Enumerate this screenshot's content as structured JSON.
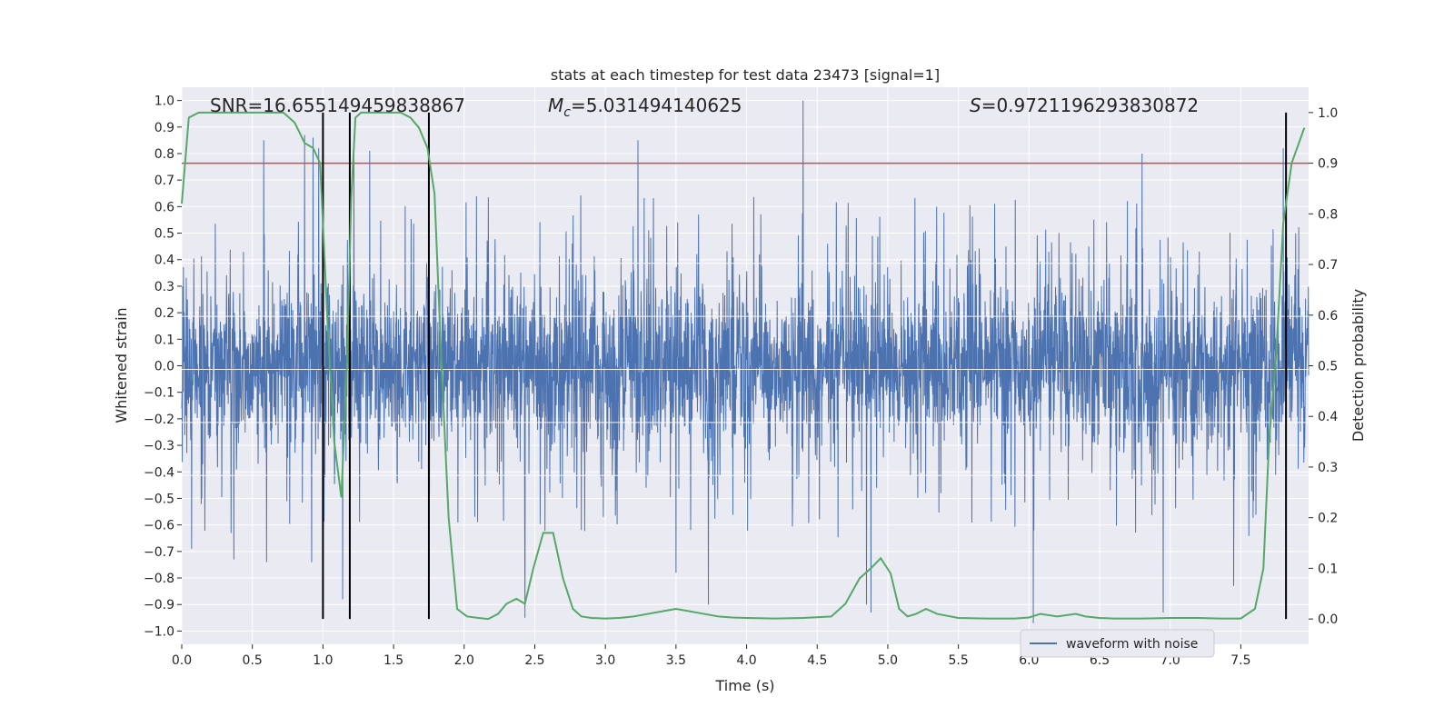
{
  "chart_data": {
    "type": "line",
    "title": "stats at each timestep for test data 23473 [signal=1]",
    "xlabel": "Time (s)",
    "ylabel": "Whitened strain",
    "y2label": "Detection probability",
    "xlim": [
      0.0,
      7.98
    ],
    "ylim": [
      -1.05,
      1.05
    ],
    "y2lim": [
      -0.05,
      1.05
    ],
    "x_ticks": [
      0.0,
      0.5,
      1.0,
      1.5,
      2.0,
      2.5,
      3.0,
      3.5,
      4.0,
      4.5,
      5.0,
      5.5,
      6.0,
      6.5,
      7.0,
      7.5
    ],
    "x_tick_labels": [
      "0.0",
      "0.5",
      "1.0",
      "1.5",
      "2.0",
      "2.5",
      "3.0",
      "3.5",
      "4.0",
      "4.5",
      "5.0",
      "5.5",
      "6.0",
      "6.5",
      "7.0",
      "7.5"
    ],
    "y_ticks": [
      1.0,
      0.9,
      0.8,
      0.7,
      0.6,
      0.5,
      0.4,
      0.3,
      0.2,
      0.1,
      0.0,
      -0.1,
      -0.2,
      -0.3,
      -0.4,
      -0.5,
      -0.6,
      -0.7,
      -0.8,
      -0.9,
      -1.0
    ],
    "y_tick_labels": [
      "1.0",
      "0.9",
      "0.8",
      "0.7",
      "0.6",
      "0.5",
      "0.4",
      "0.3",
      "0.2",
      "0.1",
      "0.0",
      "−0.1",
      "−0.2",
      "−0.3",
      "−0.4",
      "−0.5",
      "−0.6",
      "−0.7",
      "−0.8",
      "−0.9",
      "−1.0"
    ],
    "y2_ticks": [
      1.0,
      0.9,
      0.8,
      0.7,
      0.6,
      0.5,
      0.4,
      0.3,
      0.2,
      0.1,
      0.0
    ],
    "y2_tick_labels": [
      "1.0",
      "0.9",
      "0.8",
      "0.7",
      "0.6",
      "0.5",
      "0.4",
      "0.3",
      "0.2",
      "0.1",
      "0.0"
    ],
    "grid": true,
    "legend": {
      "placement": "lower-right",
      "entries": [
        "waveform with noise"
      ]
    },
    "annotations": {
      "snr": "SNR=16.655149459838867",
      "mc_symbol": "M",
      "mc_sub": "c",
      "mc_value": "=5.031494140625",
      "s_symbol": "S",
      "s_value": "=0.9721196293830872"
    },
    "threshold": {
      "y2": 0.9,
      "color": "#c44e52"
    },
    "vlines_x": [
      1.0,
      1.19,
      1.75,
      7.82
    ],
    "vline_y2_range": [
      0.0,
      1.0
    ],
    "series": [
      {
        "name": "waveform with noise",
        "axis": "left",
        "color": "#4c72b0",
        "description": "whitened strain, noise-dominated, envelope about ±0.35 with spikes up to 1.0 and down to -0.95",
        "spikes": [
          [
            0.58,
            0.85
          ],
          [
            0.87,
            0.87
          ],
          [
            0.93,
            0.86
          ],
          [
            0.97,
            0.82
          ],
          [
            1.22,
            0.82
          ],
          [
            1.33,
            0.81
          ],
          [
            3.23,
            0.85
          ],
          [
            4.4,
            1.0
          ],
          [
            6.8,
            0.8
          ],
          [
            7.8,
            0.82
          ],
          [
            0.07,
            -0.69
          ],
          [
            0.37,
            -0.73
          ],
          [
            0.6,
            -0.74
          ],
          [
            0.92,
            -0.74
          ],
          [
            1.14,
            -0.88
          ],
          [
            2.43,
            -0.95
          ],
          [
            3.5,
            -0.78
          ],
          [
            3.73,
            -0.9
          ],
          [
            4.85,
            -0.9
          ],
          [
            4.88,
            -0.93
          ],
          [
            6.03,
            -0.97
          ],
          [
            6.95,
            -0.93
          ],
          [
            7.45,
            -0.83
          ]
        ]
      },
      {
        "name": "detection probability",
        "axis": "right",
        "color": "#55a868",
        "x": [
          0.0,
          0.05,
          0.12,
          0.2,
          0.35,
          0.5,
          0.6,
          0.72,
          0.8,
          0.87,
          0.93,
          0.98,
          1.03,
          1.08,
          1.13,
          1.17,
          1.2,
          1.23,
          1.27,
          1.33,
          1.45,
          1.55,
          1.62,
          1.68,
          1.74,
          1.79,
          1.84,
          1.89,
          1.95,
          2.02,
          2.1,
          2.17,
          2.24,
          2.3,
          2.37,
          2.43,
          2.49,
          2.56,
          2.63,
          2.7,
          2.77,
          2.83,
          2.9,
          3.0,
          3.1,
          3.2,
          3.3,
          3.4,
          3.5,
          3.6,
          3.7,
          3.8,
          3.9,
          4.0,
          4.2,
          4.4,
          4.6,
          4.7,
          4.8,
          4.88,
          4.95,
          5.02,
          5.08,
          5.14,
          5.2,
          5.27,
          5.35,
          5.5,
          5.7,
          5.9,
          6.0,
          6.08,
          6.2,
          6.33,
          6.4,
          6.5,
          6.6,
          6.8,
          7.0,
          7.2,
          7.35,
          7.5,
          7.6,
          7.66,
          7.7,
          7.75,
          7.8,
          7.86,
          7.95
        ],
        "y": [
          0.82,
          0.99,
          1.0,
          1.0,
          1.0,
          1.0,
          1.0,
          1.0,
          0.98,
          0.94,
          0.93,
          0.9,
          0.6,
          0.35,
          0.24,
          0.5,
          0.83,
          0.99,
          1.0,
          1.0,
          1.0,
          1.0,
          0.99,
          0.97,
          0.93,
          0.84,
          0.5,
          0.2,
          0.02,
          0.005,
          0.002,
          0.0,
          0.01,
          0.03,
          0.04,
          0.03,
          0.1,
          0.17,
          0.17,
          0.08,
          0.02,
          0.005,
          0.002,
          0.001,
          0.002,
          0.005,
          0.01,
          0.015,
          0.02,
          0.015,
          0.01,
          0.005,
          0.003,
          0.002,
          0.001,
          0.002,
          0.005,
          0.03,
          0.08,
          0.1,
          0.12,
          0.09,
          0.02,
          0.005,
          0.01,
          0.02,
          0.01,
          0.002,
          0.001,
          0.001,
          0.003,
          0.01,
          0.005,
          0.01,
          0.005,
          0.002,
          0.001,
          0.001,
          0.002,
          0.002,
          0.001,
          0.001,
          0.02,
          0.1,
          0.35,
          0.52,
          0.78,
          0.9,
          0.97
        ]
      }
    ]
  }
}
